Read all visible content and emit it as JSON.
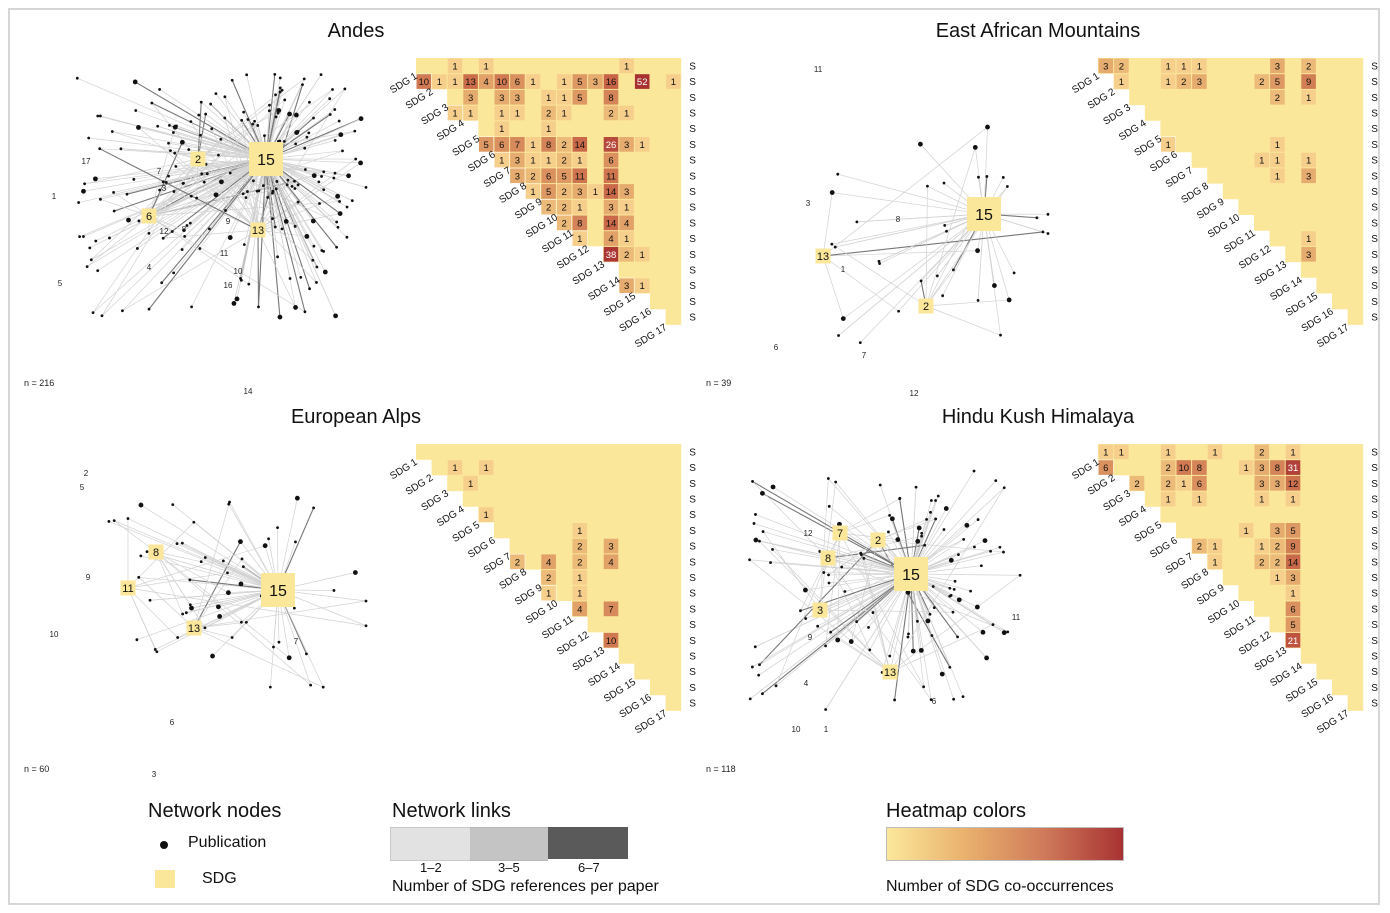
{
  "panels": [
    {
      "title": "Andes",
      "n_label": "n = 216",
      "sdg_nodes": [
        {
          "label": "15",
          "big": true
        },
        {
          "label": "2"
        },
        {
          "label": "6"
        },
        {
          "label": "13"
        }
      ],
      "node_labels": [
        "17",
        "1",
        "5",
        "7",
        "3",
        "12",
        "8",
        "9",
        "4",
        "11",
        "10",
        "16",
        "14"
      ],
      "cells": [
        [
          1,
          3,
          "1"
        ],
        [
          1,
          5,
          "1"
        ],
        [
          1,
          14,
          "1"
        ],
        [
          2,
          1,
          "10"
        ],
        [
          2,
          2,
          "1"
        ],
        [
          2,
          3,
          "1"
        ],
        [
          2,
          4,
          "13"
        ],
        [
          2,
          5,
          "4"
        ],
        [
          2,
          6,
          "10"
        ],
        [
          2,
          7,
          "6"
        ],
        [
          2,
          8,
          "1"
        ],
        [
          2,
          10,
          "1"
        ],
        [
          2,
          11,
          "5"
        ],
        [
          2,
          12,
          "3"
        ],
        [
          2,
          13,
          "16"
        ],
        [
          2,
          15,
          "52"
        ],
        [
          2,
          17,
          "1"
        ],
        [
          3,
          4,
          "3"
        ],
        [
          3,
          6,
          "3"
        ],
        [
          3,
          7,
          "3"
        ],
        [
          3,
          9,
          "1"
        ],
        [
          3,
          10,
          "1"
        ],
        [
          3,
          11,
          "5"
        ],
        [
          3,
          13,
          "8"
        ],
        [
          4,
          3,
          "1"
        ],
        [
          4,
          4,
          "1"
        ],
        [
          4,
          6,
          "1"
        ],
        [
          4,
          7,
          "1"
        ],
        [
          4,
          9,
          "2"
        ],
        [
          4,
          10,
          "1"
        ],
        [
          4,
          13,
          "2"
        ],
        [
          4,
          14,
          "1"
        ],
        [
          5,
          6,
          "1"
        ],
        [
          5,
          9,
          "1"
        ],
        [
          6,
          5,
          "5"
        ],
        [
          6,
          6,
          "6"
        ],
        [
          6,
          7,
          "7"
        ],
        [
          6,
          8,
          "1"
        ],
        [
          6,
          9,
          "8"
        ],
        [
          6,
          10,
          "2"
        ],
        [
          6,
          11,
          "14"
        ],
        [
          6,
          13,
          "26"
        ],
        [
          6,
          14,
          "3"
        ],
        [
          6,
          15,
          "1"
        ],
        [
          7,
          6,
          "1"
        ],
        [
          7,
          7,
          "3"
        ],
        [
          7,
          8,
          "1"
        ],
        [
          7,
          9,
          "1"
        ],
        [
          7,
          10,
          "2"
        ],
        [
          7,
          11,
          "1"
        ],
        [
          7,
          13,
          "6"
        ],
        [
          8,
          7,
          "3"
        ],
        [
          8,
          8,
          "2"
        ],
        [
          8,
          9,
          "6"
        ],
        [
          8,
          10,
          "5"
        ],
        [
          8,
          11,
          "11"
        ],
        [
          8,
          13,
          "11"
        ],
        [
          9,
          8,
          "1"
        ],
        [
          9,
          9,
          "5"
        ],
        [
          9,
          10,
          "2"
        ],
        [
          9,
          11,
          "3"
        ],
        [
          9,
          12,
          "1"
        ],
        [
          9,
          13,
          "14"
        ],
        [
          9,
          14,
          "3"
        ],
        [
          10,
          9,
          "2"
        ],
        [
          10,
          10,
          "2"
        ],
        [
          10,
          11,
          "1"
        ],
        [
          10,
          13,
          "3"
        ],
        [
          10,
          14,
          "1"
        ],
        [
          11,
          10,
          "2"
        ],
        [
          11,
          11,
          "8"
        ],
        [
          11,
          13,
          "14"
        ],
        [
          11,
          14,
          "4"
        ],
        [
          12,
          11,
          "1"
        ],
        [
          12,
          13,
          "4"
        ],
        [
          12,
          14,
          "1"
        ],
        [
          13,
          13,
          "38"
        ],
        [
          13,
          14,
          "2"
        ],
        [
          13,
          15,
          "1"
        ],
        [
          15,
          14,
          "3"
        ],
        [
          15,
          15,
          "1"
        ]
      ]
    },
    {
      "title": "East African Mountains",
      "n_label": "n = 39",
      "sdg_nodes": [
        {
          "label": "15",
          "big": true
        },
        {
          "label": "2"
        },
        {
          "label": "13"
        }
      ],
      "node_labels": [
        "11",
        "3",
        "8",
        "1",
        "6",
        "7",
        "12"
      ],
      "cells": [
        [
          1,
          1,
          "3"
        ],
        [
          1,
          2,
          "2"
        ],
        [
          1,
          5,
          "1"
        ],
        [
          1,
          6,
          "1"
        ],
        [
          1,
          7,
          "1"
        ],
        [
          1,
          12,
          "3"
        ],
        [
          1,
          14,
          "2"
        ],
        [
          2,
          2,
          "1"
        ],
        [
          2,
          5,
          "1"
        ],
        [
          2,
          6,
          "2"
        ],
        [
          2,
          7,
          "3"
        ],
        [
          2,
          11,
          "2"
        ],
        [
          2,
          12,
          "5"
        ],
        [
          2,
          14,
          "9"
        ],
        [
          3,
          12,
          "2"
        ],
        [
          3,
          14,
          "1"
        ],
        [
          6,
          5,
          "1"
        ],
        [
          6,
          12,
          "1"
        ],
        [
          7,
          11,
          "1"
        ],
        [
          7,
          12,
          "1"
        ],
        [
          7,
          14,
          "1"
        ],
        [
          8,
          12,
          "1"
        ],
        [
          8,
          14,
          "3"
        ],
        [
          12,
          14,
          "1"
        ],
        [
          13,
          14,
          "3"
        ]
      ]
    },
    {
      "title": "European Alps",
      "n_label": "n = 60",
      "sdg_nodes": [
        {
          "label": "15",
          "big": true
        },
        {
          "label": "11"
        },
        {
          "label": "8"
        },
        {
          "label": "13"
        }
      ],
      "node_labels": [
        "2",
        "5",
        "9",
        "10",
        "7",
        "6",
        "3"
      ],
      "cells": [
        [
          2,
          3,
          "1"
        ],
        [
          2,
          5,
          "1"
        ],
        [
          3,
          4,
          "1"
        ],
        [
          5,
          5,
          "1"
        ],
        [
          6,
          11,
          "1"
        ],
        [
          7,
          11,
          "2"
        ],
        [
          7,
          13,
          "3"
        ],
        [
          8,
          7,
          "2"
        ],
        [
          8,
          9,
          "4"
        ],
        [
          8,
          11,
          "2"
        ],
        [
          8,
          13,
          "4"
        ],
        [
          9,
          9,
          "2"
        ],
        [
          9,
          11,
          "1"
        ],
        [
          10,
          9,
          "1"
        ],
        [
          10,
          11,
          "1"
        ],
        [
          11,
          11,
          "4"
        ],
        [
          11,
          13,
          "7"
        ],
        [
          13,
          13,
          "10"
        ]
      ]
    },
    {
      "title": "Hindu Kush Himalaya",
      "n_label": "n = 118",
      "sdg_nodes": [
        {
          "label": "15",
          "big": true
        },
        {
          "label": "2"
        },
        {
          "label": "7"
        },
        {
          "label": "8"
        },
        {
          "label": "3"
        },
        {
          "label": "13"
        }
      ],
      "node_labels": [
        "12",
        "9",
        "4",
        "10",
        "1",
        "6",
        "11"
      ],
      "cells": [
        [
          1,
          1,
          "1"
        ],
        [
          1,
          2,
          "1"
        ],
        [
          1,
          5,
          "1"
        ],
        [
          1,
          8,
          "1"
        ],
        [
          1,
          11,
          "2"
        ],
        [
          1,
          13,
          "1"
        ],
        [
          2,
          1,
          "6"
        ],
        [
          2,
          5,
          "2"
        ],
        [
          2,
          6,
          "10"
        ],
        [
          2,
          7,
          "8"
        ],
        [
          2,
          10,
          "1"
        ],
        [
          2,
          11,
          "3"
        ],
        [
          2,
          12,
          "8"
        ],
        [
          2,
          13,
          "31"
        ],
        [
          3,
          3,
          "2"
        ],
        [
          3,
          5,
          "2"
        ],
        [
          3,
          6,
          "1"
        ],
        [
          3,
          7,
          "6"
        ],
        [
          3,
          11,
          "3"
        ],
        [
          3,
          12,
          "3"
        ],
        [
          3,
          13,
          "12"
        ],
        [
          4,
          5,
          "1"
        ],
        [
          4,
          7,
          "1"
        ],
        [
          4,
          11,
          "1"
        ],
        [
          4,
          13,
          "1"
        ],
        [
          6,
          10,
          "1"
        ],
        [
          6,
          12,
          "3"
        ],
        [
          6,
          13,
          "5"
        ],
        [
          7,
          7,
          "2"
        ],
        [
          7,
          8,
          "1"
        ],
        [
          7,
          11,
          "1"
        ],
        [
          7,
          12,
          "2"
        ],
        [
          7,
          13,
          "9"
        ],
        [
          8,
          8,
          "1"
        ],
        [
          8,
          11,
          "2"
        ],
        [
          8,
          12,
          "2"
        ],
        [
          8,
          13,
          "14"
        ],
        [
          9,
          12,
          "1"
        ],
        [
          9,
          13,
          "3"
        ],
        [
          10,
          13,
          "1"
        ],
        [
          11,
          13,
          "6"
        ],
        [
          12,
          13,
          "5"
        ],
        [
          13,
          13,
          "21"
        ]
      ]
    }
  ],
  "sdg_labels": [
    "SDG 1",
    "SDG 2",
    "SDG 3",
    "SDG 4",
    "SDG 5",
    "SDG 6",
    "SDG 7",
    "SDG 8",
    "SDG 9",
    "SDG 10",
    "SDG 11",
    "SDG 12",
    "SDG 13",
    "SDG 14",
    "SDG 15",
    "SDG 16",
    "SDG 17"
  ],
  "legend": {
    "nodes_title": "Network nodes",
    "publication_label": "Publication",
    "sdg_label": "SDG",
    "links_title": "Network links",
    "links_ticks": [
      "1–2",
      "3–5",
      "6–7"
    ],
    "links_caption": "Number of SDG references per paper",
    "heat_title": "Heatmap colors",
    "heat_caption": "Number of SDG co-occurrences"
  },
  "colors": {
    "sdg_yellow": "#fbe79a",
    "heat_low": "#fbe79a",
    "heat_high": "#a83232",
    "link_light": "#e2e2e2",
    "link_mid": "#c4c4c4",
    "link_dark": "#5a5a5a"
  }
}
